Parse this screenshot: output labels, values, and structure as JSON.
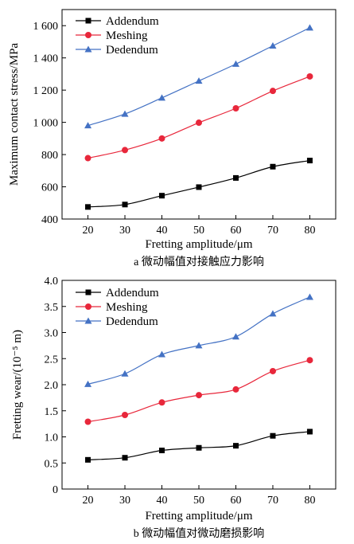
{
  "chart_data": [
    {
      "type": "line",
      "caption": "a 微动幅值对接触应力影响",
      "xlabel": "Fretting amplitude/μm",
      "ylabel": "Maximum contact stress/MPa",
      "x": [
        20,
        30,
        40,
        50,
        60,
        70,
        80
      ],
      "xlim": [
        13,
        87
      ],
      "ylim": [
        400,
        1700
      ],
      "xticks": [
        20,
        30,
        40,
        50,
        60,
        70,
        80
      ],
      "yticks": [
        400,
        600,
        800,
        1000,
        1200,
        1400,
        1600
      ],
      "ytick_labels": [
        "400",
        "600",
        "800",
        "1 000",
        "1 200",
        "1 400",
        "1 600"
      ],
      "legend_position": "top-left",
      "grid": false,
      "series": [
        {
          "name": "Addendum",
          "color": "#000000",
          "marker": "square",
          "values": [
            475,
            490,
            545,
            598,
            655,
            725,
            763
          ]
        },
        {
          "name": "Meshing",
          "color": "#e8273b",
          "marker": "circle",
          "values": [
            778,
            828,
            900,
            998,
            1087,
            1195,
            1285
          ]
        },
        {
          "name": "Dedendum",
          "color": "#4472c4",
          "marker": "triangle",
          "values": [
            980,
            1052,
            1152,
            1257,
            1362,
            1475,
            1587
          ]
        }
      ]
    },
    {
      "type": "line",
      "caption": "b 微动幅值对微动磨损影响",
      "xlabel": "Fretting amplitude/μm",
      "ylabel": "Fretting wear/(10⁻⁵ m)",
      "x": [
        20,
        30,
        40,
        50,
        60,
        70,
        80
      ],
      "xlim": [
        13,
        87
      ],
      "ylim": [
        0,
        4
      ],
      "xticks": [
        20,
        30,
        40,
        50,
        60,
        70,
        80
      ],
      "yticks": [
        0,
        0.5,
        1.0,
        1.5,
        2.0,
        2.5,
        3.0,
        3.5,
        4.0
      ],
      "ytick_labels": [
        "0",
        "0.5",
        "1.0",
        "1.5",
        "2.0",
        "2.5",
        "3.0",
        "3.5",
        "4.0"
      ],
      "legend_position": "top-left",
      "grid": false,
      "series": [
        {
          "name": "Addendum",
          "color": "#000000",
          "marker": "square",
          "values": [
            0.56,
            0.6,
            0.74,
            0.79,
            0.83,
            1.02,
            1.1
          ]
        },
        {
          "name": "Meshing",
          "color": "#e8273b",
          "marker": "circle",
          "values": [
            1.29,
            1.42,
            1.66,
            1.8,
            1.91,
            2.26,
            2.47
          ]
        },
        {
          "name": "Dedendum",
          "color": "#4472c4",
          "marker": "triangle",
          "values": [
            2.01,
            2.21,
            2.58,
            2.75,
            2.92,
            3.36,
            3.68
          ]
        }
      ]
    }
  ]
}
